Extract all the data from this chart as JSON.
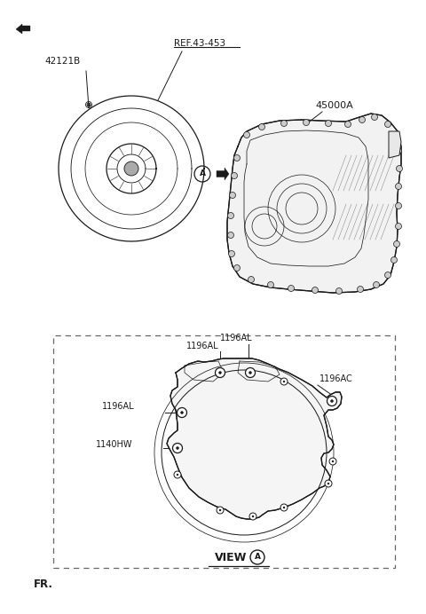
{
  "bg_color": "#ffffff",
  "line_color": "#1a1a1a",
  "dashed_color": "#666666",
  "label_42121B": "42121B",
  "label_ref": "REF.43-453",
  "label_45000A": "45000A",
  "label_1196AL_1": "1196AL",
  "label_1196AL_2": "1196AL",
  "label_1196AL_3": "1196AL",
  "label_1196AC": "1196AC",
  "label_1140HW": "1140HW",
  "label_view": "VIEW",
  "label_A_circle": "A",
  "label_FR": "FR.",
  "fig_width": 4.8,
  "fig_height": 6.92,
  "dpi": 100
}
